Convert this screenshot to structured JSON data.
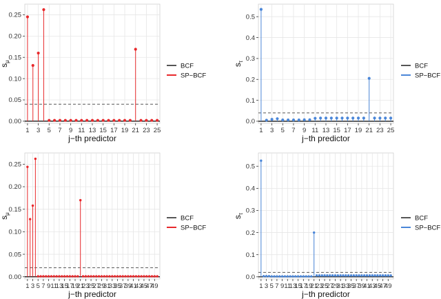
{
  "colors": {
    "bcf": "#555555",
    "sp_bcf_red": "#e8282b",
    "sp_bcf_blue": "#4a86d8",
    "grid": "#e6e6e6",
    "panel_border": "#d0d0d0"
  },
  "legend_labels": [
    "BCF",
    "SP−BCF"
  ],
  "chart_data": [
    {
      "type": "stem",
      "xlabel": "j−th predictor",
      "ylabel": "s",
      "ylabel_subscript": "μ",
      "xlim": [
        0.5,
        25.5
      ],
      "ylim": [
        -0.005,
        0.275
      ],
      "xticks": [
        1,
        3,
        5,
        7,
        9,
        11,
        13,
        15,
        17,
        19,
        21,
        23,
        25
      ],
      "yticks": [
        0.0,
        0.05,
        0.1,
        0.15,
        0.2,
        0.25
      ],
      "ytick_labels": [
        "0.00",
        "0.05",
        "0.10",
        "0.15",
        "0.20",
        "0.25"
      ],
      "bcf_threshold": 0.04,
      "series_color": "red",
      "legend": [
        "BCF",
        "SP−BCF"
      ],
      "x": [
        1,
        2,
        3,
        4,
        5,
        6,
        7,
        8,
        9,
        10,
        11,
        12,
        13,
        14,
        15,
        16,
        17,
        18,
        19,
        20,
        21,
        22,
        23,
        24,
        25
      ],
      "values": [
        0.245,
        0.131,
        0.16,
        0.262,
        0.002,
        0.002,
        0.002,
        0.002,
        0.002,
        0.002,
        0.002,
        0.002,
        0.002,
        0.002,
        0.002,
        0.002,
        0.002,
        0.002,
        0.002,
        0.002,
        0.169,
        0.002,
        0.002,
        0.002,
        0.002
      ]
    },
    {
      "type": "stem",
      "xlabel": "j−th predictor",
      "ylabel": "s",
      "ylabel_subscript": "τ",
      "xlim": [
        0.5,
        25.5
      ],
      "ylim": [
        -0.01,
        0.56
      ],
      "xticks": [
        1,
        3,
        5,
        7,
        9,
        11,
        13,
        15,
        17,
        19,
        21,
        23,
        25
      ],
      "yticks": [
        0.0,
        0.1,
        0.2,
        0.3,
        0.4,
        0.5
      ],
      "ytick_labels": [
        "0.0",
        "0.1",
        "0.2",
        "0.3",
        "0.4",
        "0.5"
      ],
      "bcf_threshold": 0.04,
      "series_color": "blue",
      "legend": [
        "BCF",
        "SP−BCF"
      ],
      "x": [
        1,
        2,
        3,
        4,
        5,
        6,
        7,
        8,
        9,
        10,
        11,
        12,
        13,
        14,
        15,
        16,
        17,
        18,
        19,
        20,
        21,
        22,
        23,
        24,
        25
      ],
      "values": [
        0.535,
        0.005,
        0.009,
        0.012,
        0.006,
        0.006,
        0.006,
        0.006,
        0.007,
        0.007,
        0.014,
        0.015,
        0.015,
        0.015,
        0.015,
        0.015,
        0.015,
        0.015,
        0.015,
        0.015,
        0.205,
        0.015,
        0.015,
        0.015,
        0.015
      ]
    },
    {
      "type": "stem",
      "xlabel": "j−th predictor",
      "ylabel": "s",
      "ylabel_subscript": "μ",
      "xlim": [
        0,
        51
      ],
      "ylim": [
        -0.005,
        0.275
      ],
      "xticks": [
        1,
        3,
        5,
        7,
        9,
        11,
        13,
        15,
        17,
        19,
        21,
        23,
        25,
        27,
        29,
        31,
        33,
        35,
        37,
        39,
        41,
        43,
        45,
        47,
        49
      ],
      "yticks": [
        0.0,
        0.05,
        0.1,
        0.15,
        0.2,
        0.25
      ],
      "ytick_labels": [
        "0.00",
        "0.05",
        "0.10",
        "0.15",
        "0.20",
        "0.25"
      ],
      "bcf_threshold": 0.02,
      "series_color": "red",
      "legend": [
        "BCF",
        "SP−BCF"
      ],
      "x": [
        1,
        2,
        3,
        4,
        5,
        6,
        7,
        8,
        9,
        10,
        11,
        12,
        13,
        14,
        15,
        16,
        17,
        18,
        19,
        20,
        21,
        22,
        23,
        24,
        25,
        26,
        27,
        28,
        29,
        30,
        31,
        32,
        33,
        34,
        35,
        36,
        37,
        38,
        39,
        40,
        41,
        42,
        43,
        44,
        45,
        46,
        47,
        48,
        49,
        50
      ],
      "values": [
        0.244,
        0.128,
        0.158,
        0.262,
        0.001,
        0.001,
        0.001,
        0.001,
        0.001,
        0.001,
        0.001,
        0.001,
        0.001,
        0.001,
        0.001,
        0.001,
        0.001,
        0.001,
        0.001,
        0.001,
        0.17,
        0.001,
        0.001,
        0.001,
        0.001,
        0.001,
        0.001,
        0.001,
        0.001,
        0.001,
        0.001,
        0.001,
        0.001,
        0.001,
        0.001,
        0.001,
        0.001,
        0.001,
        0.001,
        0.001,
        0.001,
        0.001,
        0.001,
        0.001,
        0.001,
        0.001,
        0.001,
        0.001,
        0.001,
        0.001
      ]
    },
    {
      "type": "stem",
      "xlabel": "j−th predictor",
      "ylabel": "s",
      "ylabel_subscript": "τ",
      "xlim": [
        0,
        51
      ],
      "ylim": [
        -0.01,
        0.56
      ],
      "xticks": [
        1,
        3,
        5,
        7,
        9,
        11,
        13,
        15,
        17,
        19,
        21,
        23,
        25,
        27,
        29,
        31,
        33,
        35,
        37,
        39,
        41,
        43,
        45,
        47,
        49
      ],
      "yticks": [
        0.0,
        0.1,
        0.2,
        0.3,
        0.4,
        0.5
      ],
      "ytick_labels": [
        "0.0",
        "0.1",
        "0.2",
        "0.3",
        "0.4",
        "0.5"
      ],
      "bcf_threshold": 0.02,
      "series_color": "blue",
      "legend": [
        "BCF",
        "SP−BCF"
      ],
      "x": [
        1,
        2,
        3,
        4,
        5,
        6,
        7,
        8,
        9,
        10,
        11,
        12,
        13,
        14,
        15,
        16,
        17,
        18,
        19,
        20,
        21,
        22,
        23,
        24,
        25,
        26,
        27,
        28,
        29,
        30,
        31,
        32,
        33,
        34,
        35,
        36,
        37,
        38,
        39,
        40,
        41,
        42,
        43,
        44,
        45,
        46,
        47,
        48,
        49,
        50
      ],
      "values": [
        0.525,
        0.003,
        0.003,
        0.003,
        0.002,
        0.002,
        0.002,
        0.002,
        0.002,
        0.002,
        0.002,
        0.002,
        0.002,
        0.002,
        0.002,
        0.002,
        0.002,
        0.002,
        0.002,
        0.002,
        0.2,
        0.006,
        0.006,
        0.006,
        0.006,
        0.006,
        0.006,
        0.006,
        0.006,
        0.006,
        0.006,
        0.006,
        0.006,
        0.006,
        0.006,
        0.006,
        0.006,
        0.006,
        0.006,
        0.006,
        0.006,
        0.006,
        0.006,
        0.006,
        0.006,
        0.006,
        0.006,
        0.006,
        0.006,
        0.006
      ]
    }
  ]
}
